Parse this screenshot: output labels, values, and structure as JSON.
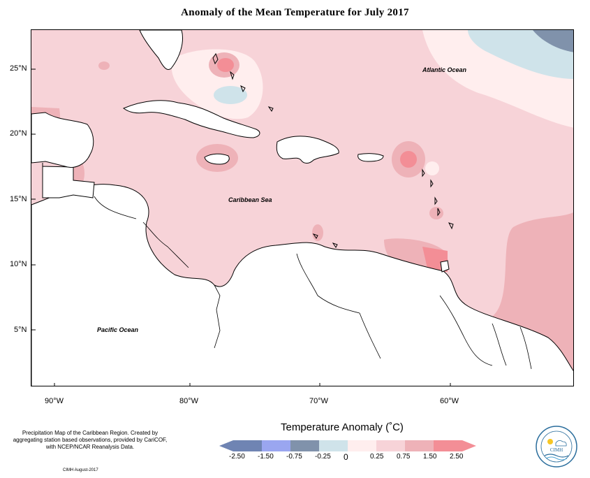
{
  "title": "Anomaly of the Mean Temperature for July 2017",
  "latitude_labels": [
    "25°N",
    "20°N",
    "15°N",
    "10°N",
    "5°N"
  ],
  "longitude_labels": [
    "90°W",
    "80°W",
    "70°W",
    "60°W"
  ],
  "ocean_labels": {
    "atlantic": "Atlantic Ocean",
    "caribbean": "Caribbean Sea",
    "pacific": "Pacific Ocean"
  },
  "footnote": "Precipitation Map of the Caribbean Region. Created by aggregating station based observations, provided by CariCOF, with NCEP/NCAR Reanalysis Data.",
  "credit": "CIMH August-2017",
  "legend": {
    "title": "Temperature Anomaly (˚C)",
    "ticks": [
      "-2.50",
      "-1.50",
      "-0.75",
      "-0.25",
      "0",
      "0.25",
      "0.75",
      "1.50",
      "2.50"
    ],
    "colors": [
      "#6f84b3",
      "#9aa6f0",
      "#8092ab",
      "#cfe3ea",
      "#ffeeee",
      "#f7d3d8",
      "#eeb2b8",
      "#f38e96"
    ]
  },
  "logo": {
    "name": "CIMH"
  },
  "colors": {
    "base": "#f7d3d8",
    "land": "#ffffff",
    "warm": "#eeb2b8",
    "hot": "#f38e96",
    "cool": "#cfe3ea",
    "neutral": "#ffeeee",
    "cold": "#8092ab"
  }
}
